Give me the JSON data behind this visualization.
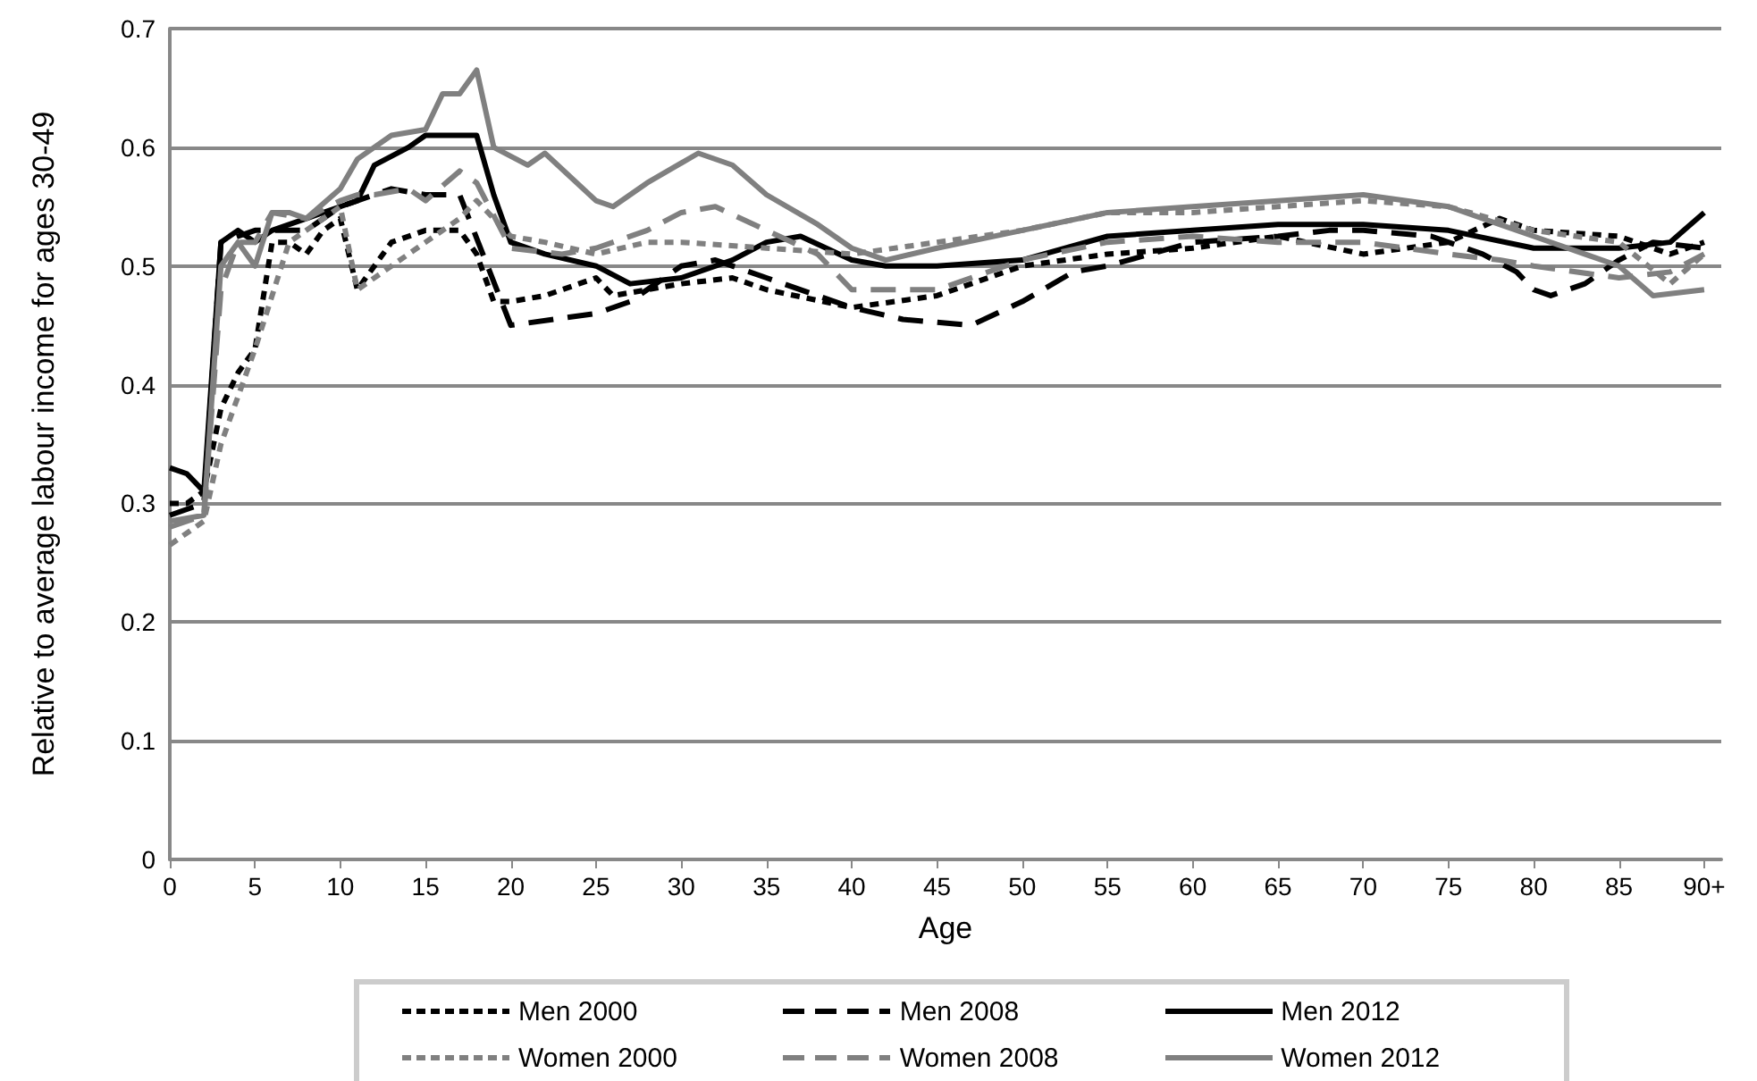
{
  "chart_data": {
    "type": "line",
    "xlabel": "Age",
    "ylabel": "Relative to average labour income for ages 30-49",
    "xlim": [
      0,
      91
    ],
    "xticks": [
      0,
      5,
      10,
      15,
      20,
      25,
      30,
      35,
      40,
      45,
      50,
      55,
      60,
      65,
      70,
      75,
      80,
      85,
      {
        "value": 90,
        "label": "90+"
      }
    ],
    "ylim": [
      0,
      0.7
    ],
    "yticks": [
      0,
      0.1,
      0.2,
      0.3,
      0.4,
      0.5,
      0.6,
      0.7
    ],
    "grid": "y",
    "legend": "bottom",
    "marker": "none",
    "series": [
      {
        "name": "Men 2000",
        "color": "#000000",
        "line_style": "dotted",
        "x": [
          0,
          1,
          2,
          3,
          4,
          5,
          6,
          7,
          8,
          9,
          10,
          11,
          12,
          13,
          15,
          17,
          18,
          19,
          20,
          22,
          25,
          26,
          30,
          33,
          35,
          40,
          45,
          50,
          55,
          60,
          65,
          70,
          75,
          78,
          80,
          85,
          88,
          90
        ],
        "values": [
          0.3,
          0.3,
          0.31,
          0.38,
          0.41,
          0.43,
          0.52,
          0.52,
          0.51,
          0.53,
          0.54,
          0.48,
          0.5,
          0.52,
          0.53,
          0.53,
          0.51,
          0.47,
          0.47,
          0.475,
          0.49,
          0.475,
          0.485,
          0.49,
          0.48,
          0.465,
          0.475,
          0.5,
          0.51,
          0.515,
          0.525,
          0.51,
          0.52,
          0.54,
          0.53,
          0.525,
          0.51,
          0.52
        ]
      },
      {
        "name": "Men 2008",
        "color": "#000000",
        "line_style": "dashed",
        "x": [
          0,
          2,
          3,
          5,
          8,
          10,
          13,
          15,
          17,
          20,
          25,
          27,
          30,
          32,
          35,
          40,
          43,
          47,
          50,
          53,
          55,
          60,
          65,
          68,
          70,
          74,
          77,
          79,
          80,
          81,
          83,
          85,
          87,
          90
        ],
        "values": [
          0.29,
          0.3,
          0.52,
          0.53,
          0.53,
          0.55,
          0.565,
          0.56,
          0.56,
          0.45,
          0.46,
          0.47,
          0.5,
          0.505,
          0.49,
          0.465,
          0.455,
          0.45,
          0.47,
          0.495,
          0.5,
          0.52,
          0.525,
          0.53,
          0.53,
          0.525,
          0.51,
          0.495,
          0.48,
          0.475,
          0.485,
          0.505,
          0.52,
          0.515
        ]
      },
      {
        "name": "Men 2012",
        "color": "#000000",
        "line_style": "solid",
        "x": [
          0,
          1,
          2,
          3,
          4,
          5,
          6,
          8,
          10,
          11,
          12,
          14,
          15,
          18,
          19,
          20,
          22,
          25,
          27,
          30,
          33,
          35,
          37,
          40,
          42,
          45,
          50,
          55,
          60,
          65,
          70,
          75,
          80,
          85,
          88,
          90
        ],
        "values": [
          0.33,
          0.325,
          0.31,
          0.52,
          0.53,
          0.52,
          0.53,
          0.54,
          0.55,
          0.555,
          0.585,
          0.6,
          0.61,
          0.61,
          0.56,
          0.52,
          0.51,
          0.5,
          0.485,
          0.49,
          0.505,
          0.52,
          0.525,
          0.505,
          0.5,
          0.5,
          0.505,
          0.525,
          0.53,
          0.535,
          0.535,
          0.53,
          0.515,
          0.515,
          0.52,
          0.545
        ]
      },
      {
        "name": "Women 2000",
        "color": "#808080",
        "line_style": "dotted",
        "x": [
          0,
          2,
          3,
          5,
          7,
          8,
          10,
          11,
          13,
          15,
          17,
          18,
          20,
          22,
          25,
          28,
          30,
          35,
          40,
          45,
          50,
          55,
          60,
          65,
          70,
          75,
          80,
          85,
          88,
          90
        ],
        "values": [
          0.265,
          0.285,
          0.35,
          0.43,
          0.52,
          0.53,
          0.55,
          0.48,
          0.5,
          0.52,
          0.54,
          0.555,
          0.525,
          0.52,
          0.51,
          0.52,
          0.52,
          0.515,
          0.51,
          0.52,
          0.53,
          0.545,
          0.545,
          0.55,
          0.555,
          0.55,
          0.53,
          0.52,
          0.485,
          0.51
        ]
      },
      {
        "name": "Women 2008",
        "color": "#808080",
        "line_style": "dashed",
        "x": [
          0,
          2,
          3,
          4,
          5,
          6,
          8,
          10,
          11,
          12,
          14,
          15,
          17,
          18,
          20,
          23,
          25,
          28,
          30,
          32,
          35,
          38,
          40,
          45,
          50,
          55,
          60,
          65,
          70,
          75,
          78,
          80,
          85,
          88,
          90
        ],
        "values": [
          0.28,
          0.29,
          0.48,
          0.52,
          0.52,
          0.545,
          0.54,
          0.555,
          0.56,
          0.56,
          0.565,
          0.555,
          0.58,
          0.57,
          0.515,
          0.51,
          0.515,
          0.53,
          0.545,
          0.55,
          0.53,
          0.51,
          0.48,
          0.48,
          0.505,
          0.52,
          0.525,
          0.52,
          0.52,
          0.51,
          0.505,
          0.5,
          0.49,
          0.495,
          0.51
        ]
      },
      {
        "name": "Women 2012",
        "color": "#808080",
        "line_style": "solid",
        "x": [
          0,
          2,
          3,
          4,
          5,
          6,
          7,
          8,
          10,
          11,
          13,
          15,
          16,
          17,
          18,
          19,
          21,
          22,
          25,
          26,
          28,
          31,
          33,
          35,
          38,
          40,
          42,
          45,
          50,
          55,
          60,
          65,
          70,
          75,
          80,
          85,
          87,
          90
        ],
        "values": [
          0.285,
          0.29,
          0.5,
          0.52,
          0.5,
          0.545,
          0.545,
          0.54,
          0.565,
          0.59,
          0.61,
          0.615,
          0.645,
          0.645,
          0.665,
          0.6,
          0.585,
          0.595,
          0.555,
          0.55,
          0.57,
          0.595,
          0.585,
          0.56,
          0.535,
          0.515,
          0.505,
          0.515,
          0.53,
          0.545,
          0.55,
          0.555,
          0.56,
          0.55,
          0.525,
          0.5,
          0.475,
          0.48
        ]
      }
    ]
  }
}
